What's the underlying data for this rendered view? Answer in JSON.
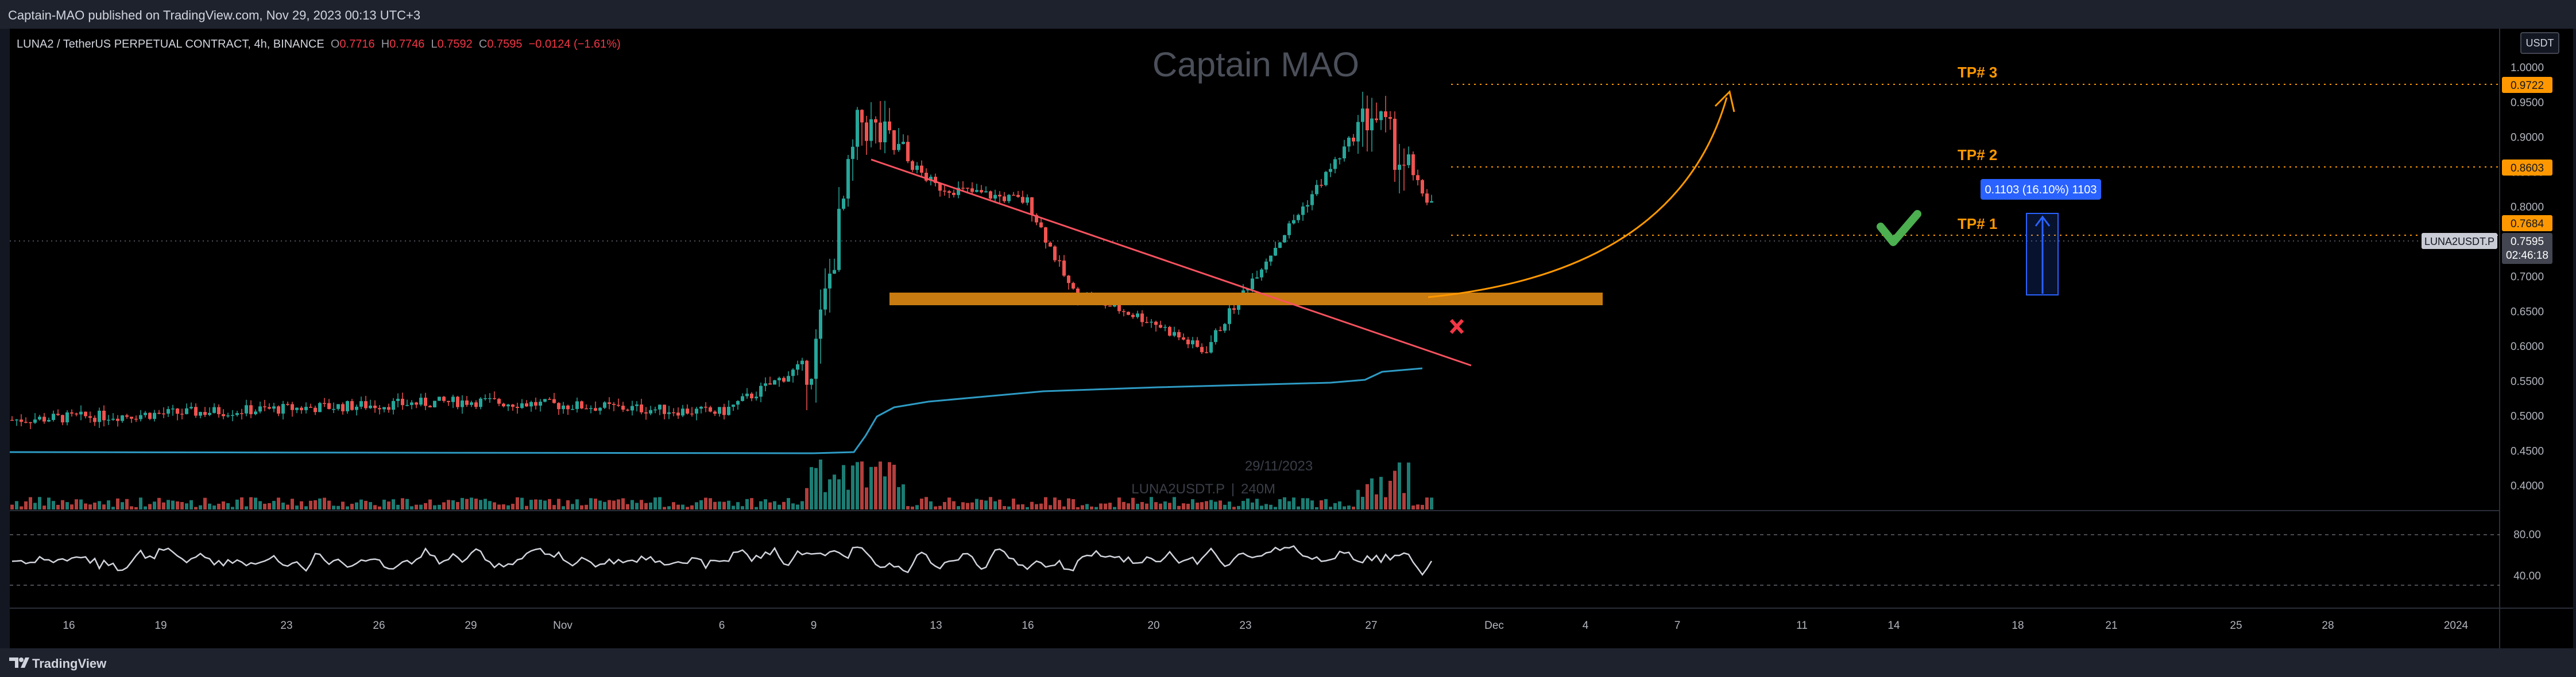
{
  "header": {
    "publish_line": "Captain-MAO published on TradingView.com, Nov 29, 2023 00:13 UTC+3"
  },
  "legend": {
    "title": "LUNA2 / TetherUS PERPETUAL CONTRACT, 4h, BINANCE",
    "open_label": "O",
    "open": "0.7716",
    "high_label": "H",
    "high": "0.7746",
    "low_label": "L",
    "low": "0.7592",
    "close_label": "C",
    "close": "0.7595",
    "change": "−0.0124 (−1.61%)"
  },
  "watermark": {
    "name": "Captain MAO",
    "date": "29/11/2023",
    "symbol": "LUNA2USDT.P",
    "separator": "|",
    "interval": "240M"
  },
  "toolbar": {
    "currency": "USDT"
  },
  "annotations": {
    "tp1": "TP# 1",
    "tp2": "TP# 2",
    "tp3": "TP# 3",
    "measure": "0.1103 (16.10%) 1103"
  },
  "price_axis": {
    "ticks": [
      "1.0000",
      "0.9500",
      "0.9000",
      "0.8500",
      "0.8000",
      "0.7500",
      "0.7000",
      "0.6500",
      "0.6000",
      "0.5500",
      "0.5000",
      "0.4500",
      "0.4000"
    ],
    "tp3_tag": "0.9722",
    "tp2_tag": "0.8603",
    "tp1_tag": "0.7684",
    "last_price_tag": "0.7595",
    "countdown": "02:46:18",
    "symbol_tag": "LUNA2USDT.P",
    "colors": {
      "tp_tag": "#ff9800",
      "last_price": "#434651"
    }
  },
  "rsi_axis": {
    "ticks": [
      "80.00",
      "40.00"
    ]
  },
  "time_axis": {
    "ticks": [
      "16",
      "19",
      "23",
      "26",
      "29",
      "Nov",
      "6",
      "9",
      "13",
      "16",
      "20",
      "23",
      "27",
      "Dec",
      "4",
      "7",
      "11",
      "14",
      "18",
      "21",
      "25",
      "28",
      "2024"
    ]
  },
  "footer": {
    "brand": "TradingView"
  },
  "chart_data": {
    "type": "candlestick",
    "symbol": "LUNA2 / TetherUS PERPETUAL CONTRACT",
    "interval": "4h",
    "exchange": "BINANCE",
    "ylim": [
      0.38,
      1.02
    ],
    "legend_placement": "top-left",
    "grid": false,
    "key_points": [
      {
        "date": "Oct 13",
        "price": 0.47
      },
      {
        "date": "Oct 29",
        "price": 0.495
      },
      {
        "date": "Nov 6",
        "price": 0.48
      },
      {
        "date": "Nov 9",
        "price": 0.55
      },
      {
        "date": "Nov 10",
        "price": 0.87
      },
      {
        "date": "Nov 13",
        "price": 0.78
      },
      {
        "date": "Nov 16",
        "price": 0.76
      },
      {
        "date": "Nov 18",
        "price": 0.64
      },
      {
        "date": "Nov 21",
        "price": 0.6
      },
      {
        "date": "Nov 22",
        "price": 0.56
      },
      {
        "date": "Nov 25",
        "price": 0.645
      },
      {
        "date": "Nov 27",
        "price": 0.88
      },
      {
        "date": "Nov 28",
        "price": 0.76
      }
    ],
    "horizontal_zone": {
      "price": 0.68
    },
    "tp_levels": [
      0.7684,
      0.8603,
      0.9722
    ],
    "last_price": 0.7595,
    "rsi_ticks": [
      80,
      40
    ],
    "colors": {
      "up": "#26a69a",
      "down": "#ef5350",
      "trendline": "#f7525f",
      "zone": "#c87b10",
      "projection": "#ff9800",
      "vwap": "#2e9bc4",
      "check": "#4caf50",
      "cross": "#f23645",
      "measure": "#2962ff"
    }
  }
}
